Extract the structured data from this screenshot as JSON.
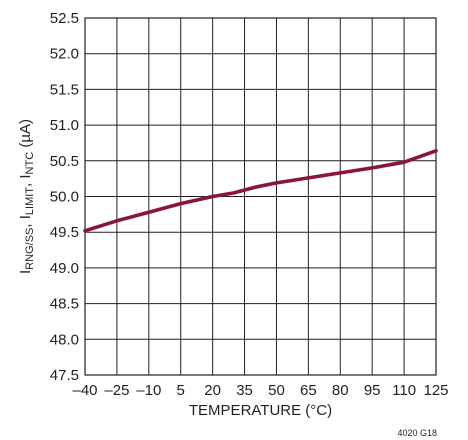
{
  "chart_data": {
    "type": "line",
    "xlabel": "TEMPERATURE (°C)",
    "ylabel": {
      "parts": [
        {
          "text": "I",
          "sub": false
        },
        {
          "text": "RNG/SS",
          "sub": true
        },
        {
          "text": ", I",
          "sub": false
        },
        {
          "text": "LIMIT",
          "sub": true
        },
        {
          "text": ", I",
          "sub": false
        },
        {
          "text": "NTC",
          "sub": true
        },
        {
          "text": " (µA)",
          "sub": false
        }
      ]
    },
    "xlim": [
      -40,
      125
    ],
    "ylim": [
      47.5,
      52.5
    ],
    "x_ticks": [
      -40,
      -25,
      -10,
      5,
      20,
      35,
      50,
      65,
      80,
      95,
      110,
      125
    ],
    "x_tick_labels": [
      "–40",
      "–25",
      "–10",
      "5",
      "20",
      "35",
      "50",
      "65",
      "80",
      "95",
      "110",
      "125"
    ],
    "y_ticks": [
      47.5,
      48.0,
      48.5,
      49.0,
      49.5,
      50.0,
      50.5,
      51.0,
      51.5,
      52.0,
      52.5
    ],
    "y_tick_labels": [
      "47.5",
      "48.0",
      "48.5",
      "49.0",
      "49.5",
      "50.0",
      "50.5",
      "51.0",
      "51.5",
      "52.0",
      "52.5"
    ],
    "grid": true,
    "line_color": "#8a1538",
    "series": [
      {
        "x": [
          -40,
          -25,
          -10,
          5,
          20,
          30,
          40,
          50,
          65,
          80,
          95,
          110,
          125
        ],
        "y": [
          49.52,
          49.66,
          49.78,
          49.9,
          50.0,
          50.05,
          50.13,
          50.19,
          50.26,
          50.33,
          50.4,
          50.48,
          50.64
        ]
      }
    ]
  },
  "figure_id": "4020 G18"
}
